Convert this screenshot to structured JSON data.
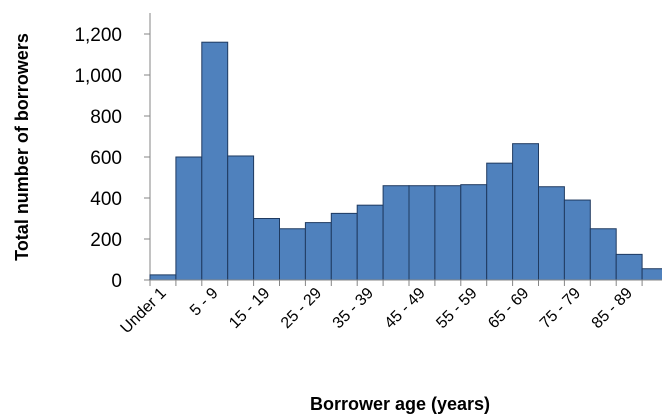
{
  "chart_data": {
    "type": "bar",
    "xlabel": "Borrower age (years)",
    "ylabel": "Total number of borrowers",
    "ylim": [
      0,
      1200
    ],
    "yticks": [
      0,
      200,
      400,
      600,
      800,
      1000,
      1200
    ],
    "ytick_labels": [
      "0",
      "200",
      "400",
      "600",
      "800",
      "1,000",
      "1,200"
    ],
    "categories": [
      "Under 1",
      "1 - 4",
      "5 - 9",
      "10 - 14",
      "15 - 19",
      "20 - 24",
      "25 - 29",
      "30 - 34",
      "35 - 39",
      "40 - 44",
      "45 - 49",
      "50 - 54",
      "55 - 59",
      "60 - 64",
      "65 - 69",
      "70 - 74",
      "75 - 79",
      "80 - 84",
      "85 - 89",
      "90 - 94",
      "95+"
    ],
    "shown_tick_labels": [
      "Under 1",
      "5 - 9",
      "15 - 19",
      "25 - 29",
      "35 - 39",
      "45 - 49",
      "55 - 59",
      "65 - 69",
      "75 - 79",
      "85 - 89"
    ],
    "values": [
      25,
      600,
      1160,
      605,
      300,
      250,
      280,
      325,
      365,
      460,
      460,
      460,
      465,
      570,
      665,
      455,
      390,
      250,
      125,
      55,
      0
    ],
    "grid": false,
    "legend": "none",
    "bar_color": "#4f81bd",
    "bar_edge_color": "#1f3a60"
  }
}
